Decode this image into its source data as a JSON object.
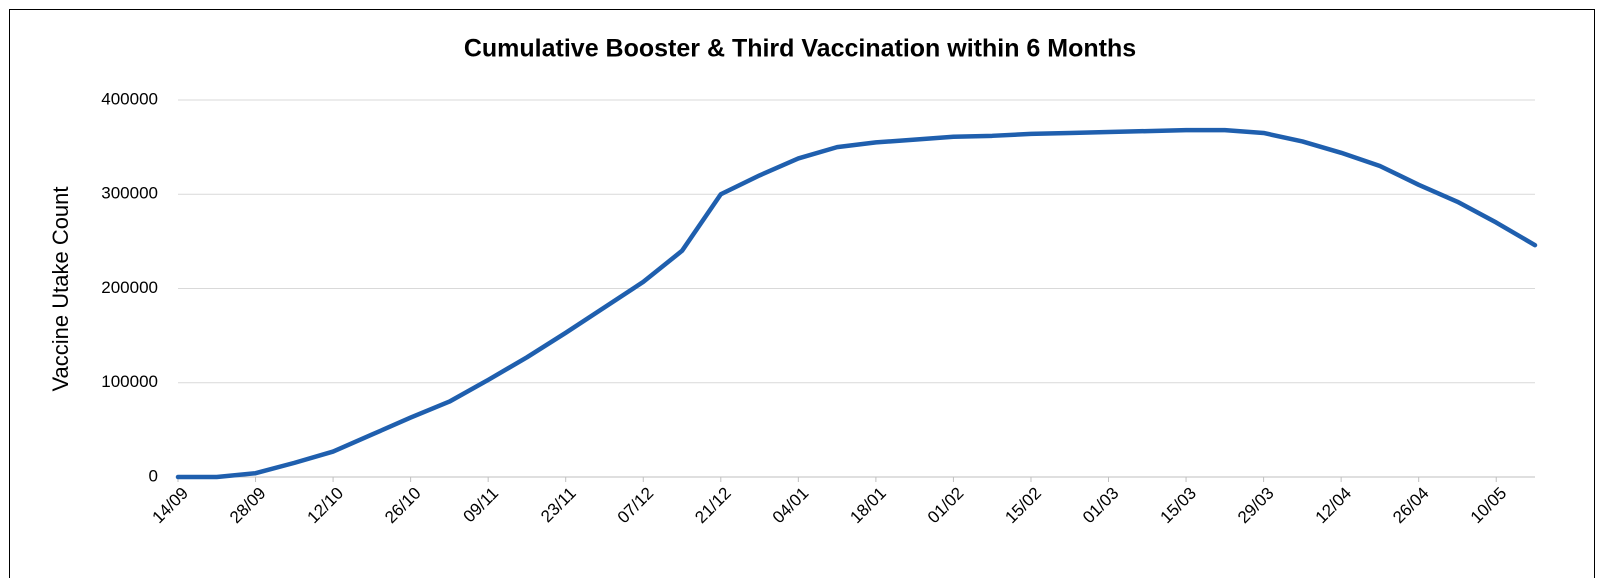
{
  "chart_data": {
    "type": "line",
    "title": "Cumulative Booster & Third Vaccination within 6 Months",
    "y_label": "Vaccine Utake Count",
    "categories": [
      "14/09",
      null,
      "28/09",
      null,
      "12/10",
      null,
      "26/10",
      null,
      "09/11",
      null,
      "23/11",
      null,
      "07/12",
      null,
      "21/12",
      null,
      "04/01",
      null,
      "18/01",
      null,
      "01/02",
      null,
      "15/02",
      null,
      "01/03",
      null,
      "15/03",
      null,
      "29/03",
      null,
      "12/04",
      null,
      "26/04",
      null,
      "10/05",
      null
    ],
    "series": [
      {
        "name": "Cumulative Booster & Third Vaccination",
        "color": "#1f5fae",
        "values": [
          0,
          0,
          4000,
          15000,
          27000,
          45000,
          63000,
          80000,
          103000,
          127000,
          153000,
          180000,
          207000,
          240000,
          300000,
          320000,
          338000,
          350000,
          355000,
          358000,
          361000,
          362000,
          364000,
          365000,
          366000,
          367000,
          368000,
          368000,
          365000,
          356000,
          344000,
          330000,
          310000,
          292000,
          270000,
          246000
        ]
      }
    ],
    "ylim": [
      0,
      400000
    ],
    "yticks": [
      0,
      100000,
      200000,
      300000,
      400000
    ],
    "grid": true
  }
}
